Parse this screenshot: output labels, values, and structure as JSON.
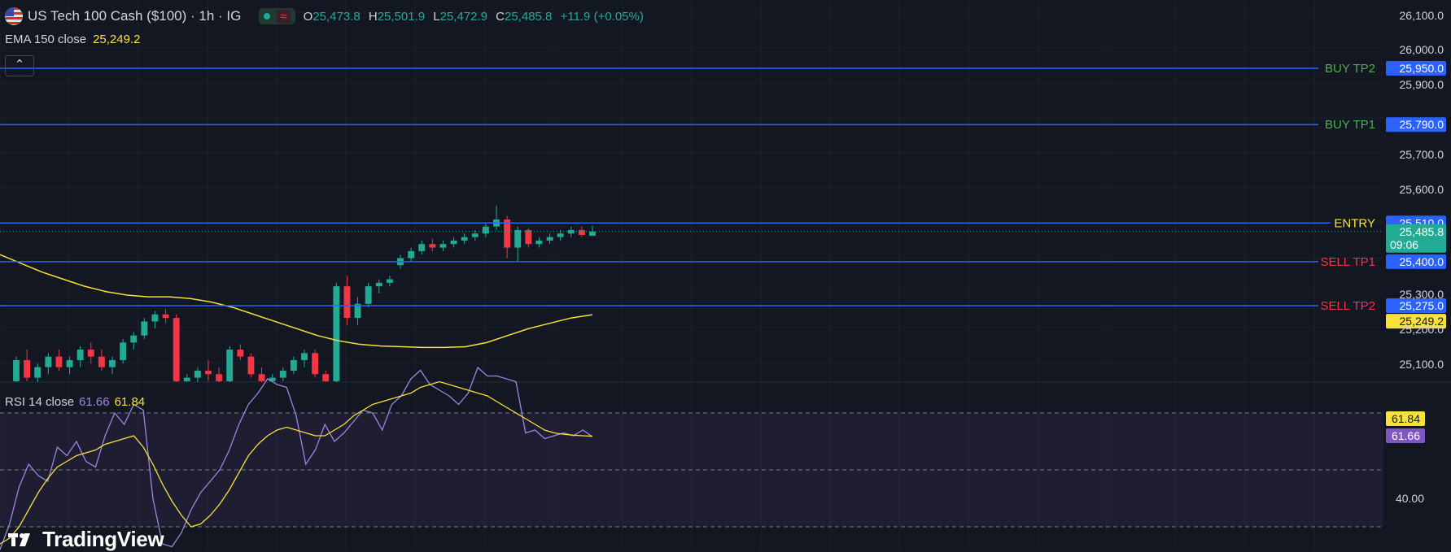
{
  "header": {
    "symbol_title": "US Tech 100 Cash ($100) · 1h · IG",
    "ohlc": {
      "open_label": "O",
      "open": "25,473.8",
      "high_label": "H",
      "high": "25,501.9",
      "low_label": "L",
      "low": "25,472.9",
      "close_label": "C",
      "close": "25,485.8",
      "change": "+11.9 (+0.05%)"
    },
    "market_status_icon": "wave-icon"
  },
  "indicators": {
    "ema_label": "EMA 150 close",
    "ema_value": "25,249.2",
    "rsi_label": "RSI 14 close",
    "rsi_value": "61.66",
    "rsi_ma_value": "61.84"
  },
  "colors": {
    "background": "#131722",
    "up": "#22ab94",
    "down": "#f23645",
    "level_line": "#2962ff",
    "ema": "#f7e13b",
    "rsi": "#9e86e0",
    "buy_text": "#4caf50",
    "sell_text": "#f23645",
    "entry_text": "#f7e13b"
  },
  "branding": "TradingView",
  "chart_data": [
    {
      "type": "candlestick",
      "timeframe": "1h",
      "y_ticks": [
        "26,100.0",
        "26,000.0",
        "25,900.0",
        "25,700.0",
        "25,600.0",
        "25,300.0",
        "25,200.0",
        "25,100.0"
      ],
      "ylim": [
        25050,
        26120
      ],
      "levels": [
        {
          "label": "BUY TP2",
          "price": 25950,
          "price_label": "25,950.0",
          "style": "buy"
        },
        {
          "label": "BUY TP1",
          "price": 25790,
          "price_label": "25,790.0",
          "style": "buy"
        },
        {
          "label": "ENTRY",
          "price": 25510,
          "price_label": "25,510.0",
          "style": "entry"
        },
        {
          "label": "SELL TP1",
          "price": 25400,
          "price_label": "25,400.0",
          "style": "sell"
        },
        {
          "label": "SELL TP2",
          "price": 25275,
          "price_label": "25,275.0",
          "style": "sell"
        }
      ],
      "current_price": {
        "price": 25485.8,
        "label": "25,485.8",
        "countdown": "09:06"
      },
      "ema_tag": {
        "price": 25249.2,
        "label": "25,249.2"
      },
      "candles": [
        {
          "o": 25060,
          "h": 25130,
          "l": 25050,
          "c": 25120
        },
        {
          "o": 25120,
          "h": 25150,
          "l": 25060,
          "c": 25070
        },
        {
          "o": 25070,
          "h": 25110,
          "l": 25050,
          "c": 25100
        },
        {
          "o": 25100,
          "h": 25140,
          "l": 25080,
          "c": 25130
        },
        {
          "o": 25130,
          "h": 25150,
          "l": 25090,
          "c": 25100
        },
        {
          "o": 25100,
          "h": 25130,
          "l": 25080,
          "c": 25120
        },
        {
          "o": 25120,
          "h": 25160,
          "l": 25100,
          "c": 25150
        },
        {
          "o": 25150,
          "h": 25170,
          "l": 25110,
          "c": 25130
        },
        {
          "o": 25130,
          "h": 25150,
          "l": 25090,
          "c": 25100
        },
        {
          "o": 25100,
          "h": 25130,
          "l": 25080,
          "c": 25120
        },
        {
          "o": 25120,
          "h": 25180,
          "l": 25110,
          "c": 25170
        },
        {
          "o": 25170,
          "h": 25200,
          "l": 25150,
          "c": 25190
        },
        {
          "o": 25190,
          "h": 25240,
          "l": 25180,
          "c": 25230
        },
        {
          "o": 25230,
          "h": 25260,
          "l": 25210,
          "c": 25250
        },
        {
          "o": 25250,
          "h": 25265,
          "l": 25225,
          "c": 25240
        },
        {
          "o": 25240,
          "h": 25250,
          "l": 25050,
          "c": 25060
        },
        {
          "o": 25060,
          "h": 25080,
          "l": 25050,
          "c": 25070
        },
        {
          "o": 25070,
          "h": 25100,
          "l": 25050,
          "c": 25090
        },
        {
          "o": 25090,
          "h": 25120,
          "l": 25060,
          "c": 25080
        },
        {
          "o": 25080,
          "h": 25100,
          "l": 25050,
          "c": 25060
        },
        {
          "o": 25060,
          "h": 25160,
          "l": 25050,
          "c": 25150
        },
        {
          "o": 25150,
          "h": 25165,
          "l": 25120,
          "c": 25130
        },
        {
          "o": 25130,
          "h": 25140,
          "l": 25070,
          "c": 25080
        },
        {
          "o": 25080,
          "h": 25100,
          "l": 25050,
          "c": 25060
        },
        {
          "o": 25060,
          "h": 25080,
          "l": 25050,
          "c": 25070
        },
        {
          "o": 25070,
          "h": 25100,
          "l": 25060,
          "c": 25090
        },
        {
          "o": 25090,
          "h": 25130,
          "l": 25080,
          "c": 25120
        },
        {
          "o": 25120,
          "h": 25150,
          "l": 25100,
          "c": 25140
        },
        {
          "o": 25140,
          "h": 25150,
          "l": 25070,
          "c": 25080
        },
        {
          "o": 25080,
          "h": 25090,
          "l": 25050,
          "c": 25060
        },
        {
          "o": 25060,
          "h": 25340,
          "l": 25050,
          "c": 25330
        },
        {
          "o": 25330,
          "h": 25360,
          "l": 25220,
          "c": 25240
        },
        {
          "o": 25240,
          "h": 25300,
          "l": 25220,
          "c": 25280
        },
        {
          "o": 25280,
          "h": 25340,
          "l": 25270,
          "c": 25330
        },
        {
          "o": 25330,
          "h": 25350,
          "l": 25310,
          "c": 25340
        },
        {
          "o": 25340,
          "h": 25360,
          "l": 25330,
          "c": 25350
        },
        {
          "o": 25390,
          "h": 25420,
          "l": 25380,
          "c": 25410
        },
        {
          "o": 25410,
          "h": 25440,
          "l": 25400,
          "c": 25430
        },
        {
          "o": 25430,
          "h": 25460,
          "l": 25420,
          "c": 25450
        },
        {
          "o": 25450,
          "h": 25465,
          "l": 25430,
          "c": 25440
        },
        {
          "o": 25440,
          "h": 25460,
          "l": 25430,
          "c": 25450
        },
        {
          "o": 25450,
          "h": 25470,
          "l": 25440,
          "c": 25460
        },
        {
          "o": 25460,
          "h": 25480,
          "l": 25450,
          "c": 25470
        },
        {
          "o": 25470,
          "h": 25490,
          "l": 25460,
          "c": 25480
        },
        {
          "o": 25480,
          "h": 25510,
          "l": 25470,
          "c": 25500
        },
        {
          "o": 25500,
          "h": 25560,
          "l": 25490,
          "c": 25520
        },
        {
          "o": 25520,
          "h": 25530,
          "l": 25410,
          "c": 25440
        },
        {
          "o": 25440,
          "h": 25500,
          "l": 25400,
          "c": 25490
        },
        {
          "o": 25490,
          "h": 25495,
          "l": 25440,
          "c": 25450
        },
        {
          "o": 25450,
          "h": 25470,
          "l": 25440,
          "c": 25460
        },
        {
          "o": 25460,
          "h": 25480,
          "l": 25450,
          "c": 25470
        },
        {
          "o": 25470,
          "h": 25490,
          "l": 25460,
          "c": 25480
        },
        {
          "o": 25480,
          "h": 25500,
          "l": 25470,
          "c": 25490
        },
        {
          "o": 25490,
          "h": 25500,
          "l": 25470,
          "c": 25476
        },
        {
          "o": 25473.8,
          "h": 25501.9,
          "l": 25472.9,
          "c": 25485.8
        }
      ],
      "ema": [
        25420,
        25395,
        25370,
        25350,
        25330,
        25315,
        25305,
        25300,
        25300,
        25295,
        25285,
        25270,
        25250,
        25230,
        25210,
        25190,
        25175,
        25165,
        25160,
        25158,
        25156,
        25156,
        25158,
        25170,
        25190,
        25210,
        25225,
        25240,
        25249.2
      ]
    },
    {
      "type": "line",
      "name": "RSI 14 close",
      "y_ticks": [
        "40.00"
      ],
      "ylim": [
        20,
        90
      ],
      "bands": [
        70,
        50,
        30
      ],
      "rsi": [
        22,
        31,
        44,
        52,
        48,
        46,
        58,
        55,
        60,
        53,
        51,
        62,
        70,
        66,
        73,
        71,
        40,
        24,
        23,
        28,
        36,
        42,
        46,
        50,
        57,
        66,
        73,
        77,
        82,
        80,
        79,
        69,
        52,
        57,
        66,
        60,
        63,
        67,
        71,
        70,
        64,
        73,
        76,
        82,
        85,
        80,
        78,
        76,
        73,
        77,
        86,
        83,
        83,
        82,
        81,
        63,
        64,
        61,
        62,
        63,
        62,
        64,
        61.66
      ],
      "rsi_ma": [
        24,
        26,
        30,
        36,
        42,
        47,
        51,
        53,
        55,
        56,
        57,
        59,
        60,
        61,
        62,
        58,
        52,
        45,
        39,
        34,
        30,
        31,
        34,
        38,
        43,
        49,
        55,
        59,
        62,
        64,
        65,
        64,
        63,
        62,
        62,
        64,
        66,
        69,
        71,
        73,
        74,
        75,
        76,
        77,
        79,
        80,
        81,
        80,
        79,
        78,
        77,
        76,
        74,
        72,
        70,
        68,
        66,
        64,
        63,
        62.5,
        62.2,
        62,
        61.84
      ],
      "rsi_tags": [
        {
          "value": 61.84,
          "label": "61.84",
          "color": "yellow"
        },
        {
          "value": 61.66,
          "label": "61.66",
          "color": "purple"
        }
      ]
    }
  ]
}
